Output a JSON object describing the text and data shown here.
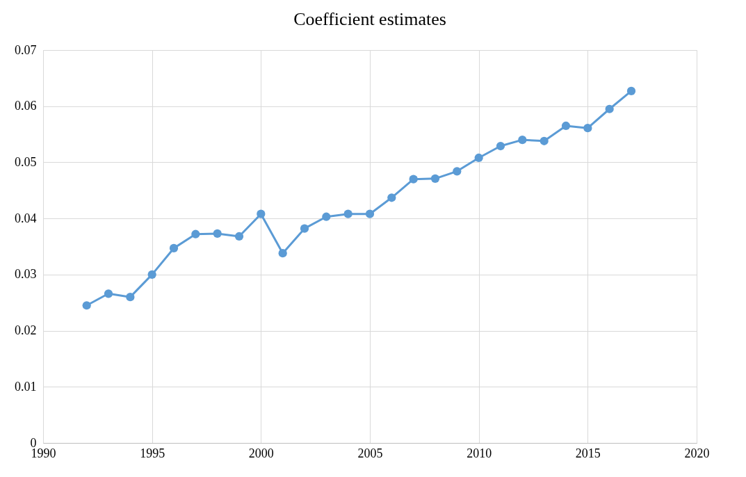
{
  "chart_data": {
    "type": "line",
    "title": "Coefficient estimates",
    "x": [
      1992,
      1993,
      1994,
      1995,
      1996,
      1997,
      1998,
      1999,
      2000,
      2001,
      2002,
      2003,
      2004,
      2005,
      2006,
      2007,
      2008,
      2009,
      2010,
      2011,
      2012,
      2013,
      2014,
      2015,
      2016,
      2017
    ],
    "series": [
      {
        "color": "#5b9bd5",
        "values": [
          0.0245,
          0.0266,
          0.026,
          0.03,
          0.0347,
          0.0372,
          0.0373,
          0.0368,
          0.0408,
          0.0338,
          0.0382,
          0.0403,
          0.0408,
          0.0408,
          0.0437,
          0.047,
          0.0471,
          0.0484,
          0.0508,
          0.0529,
          0.054,
          0.0538,
          0.0565,
          0.0561,
          0.0595,
          0.0627
        ]
      }
    ],
    "xlim": [
      1990,
      2020
    ],
    "xticks": [
      1990,
      1995,
      2000,
      2005,
      2010,
      2015,
      2020
    ],
    "ylim": [
      0,
      0.07
    ],
    "yticks": [
      0,
      0.01,
      0.02,
      0.03,
      0.04,
      0.05,
      0.06,
      0.07
    ],
    "grid": true,
    "marker": "circle",
    "line_style": "solid"
  }
}
